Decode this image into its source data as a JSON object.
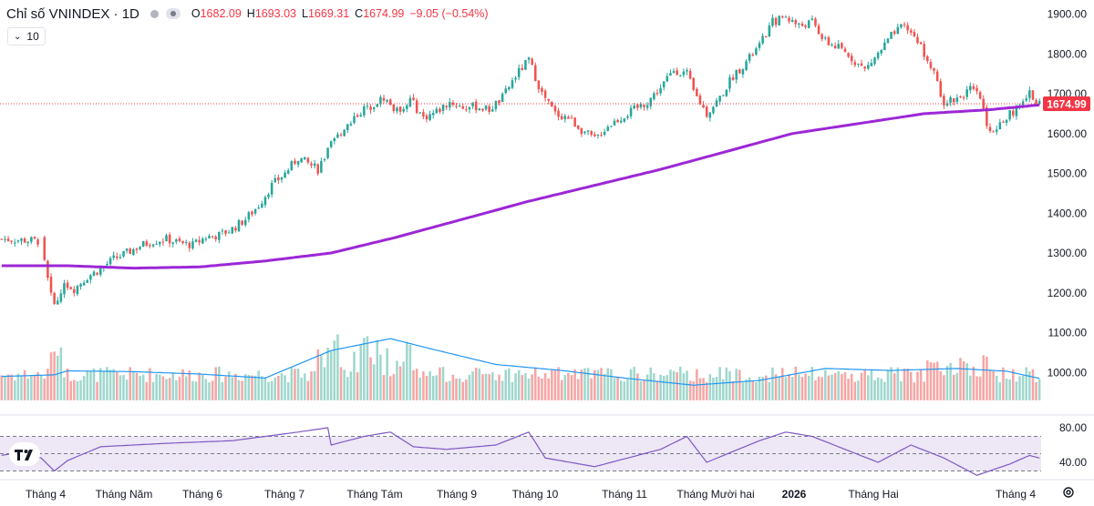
{
  "header": {
    "symbol_title": "Chỉ số VNINDEX · 1D",
    "ohlc": {
      "o_label": "O",
      "o_value": "1682.09",
      "h_label": "H",
      "h_value": "1693.03",
      "l_label": "L",
      "l_value": "1669.31",
      "c_label": "C",
      "c_value": "1674.99",
      "change": "−9.05 (−0.54%)"
    },
    "indicator_length": "10"
  },
  "colors": {
    "up": "#26a69a",
    "down": "#ef5350",
    "up_volume": "#9fd7cd",
    "down_volume": "#f5a6a4",
    "ma_line": "#9c27d6",
    "volume_ma": "#2196f3",
    "rsi_line": "#7e57c2",
    "rsi_band": "#ede7f6",
    "price_label_bg": "#f23645"
  },
  "chart_data": {
    "type": "candlestick",
    "series_daily": "VNINDEX 1D",
    "price_axis": {
      "ticks": [
        "1900.00",
        "1800.00",
        "1700.00",
        "1600.00",
        "1500.00",
        "1400.00",
        "1300.00",
        "1200.00",
        "1100.00",
        "1000.00"
      ],
      "range": [
        930,
        1930
      ]
    },
    "last_price": "1674.99",
    "rsi_axis": {
      "ticks": [
        "80.00",
        "40.00"
      ],
      "upper_band": 70,
      "lower_band": 30,
      "mid": 50
    },
    "time_axis": [
      "Tháng 4",
      "Tháng Năm",
      "Tháng 6",
      "Tháng 7",
      "Tháng Tám",
      "Tháng 9",
      "Tháng 10",
      "Tháng 11",
      "Tháng Mười hai",
      "2026",
      "Tháng Hai",
      "Tháng 4"
    ],
    "price_path": [
      [
        0,
        1335
      ],
      [
        12,
        1330
      ],
      [
        13,
        1275
      ],
      [
        15,
        1190
      ],
      [
        17,
        1175
      ],
      [
        19,
        1225
      ],
      [
        22,
        1210
      ],
      [
        26,
        1240
      ],
      [
        30,
        1260
      ],
      [
        34,
        1285
      ],
      [
        38,
        1300
      ],
      [
        42,
        1318
      ],
      [
        46,
        1330
      ],
      [
        50,
        1335
      ],
      [
        54,
        1325
      ],
      [
        58,
        1320
      ],
      [
        62,
        1340
      ],
      [
        66,
        1345
      ],
      [
        70,
        1360
      ],
      [
        74,
        1385
      ],
      [
        78,
        1420
      ],
      [
        82,
        1470
      ],
      [
        86,
        1500
      ],
      [
        90,
        1540
      ],
      [
        94,
        1520
      ],
      [
        96,
        1510
      ],
      [
        100,
        1570
      ],
      [
        104,
        1615
      ],
      [
        108,
        1650
      ],
      [
        112,
        1670
      ],
      [
        116,
        1690
      ],
      [
        120,
        1655
      ],
      [
        124,
        1685
      ],
      [
        128,
        1640
      ],
      [
        132,
        1655
      ],
      [
        136,
        1680
      ],
      [
        140,
        1665
      ],
      [
        144,
        1668
      ],
      [
        148,
        1660
      ],
      [
        152,
        1690
      ],
      [
        156,
        1745
      ],
      [
        160,
        1785
      ],
      [
        164,
        1700
      ],
      [
        168,
        1650
      ],
      [
        172,
        1640
      ],
      [
        176,
        1610
      ],
      [
        180,
        1585
      ],
      [
        184,
        1620
      ],
      [
        188,
        1640
      ],
      [
        192,
        1660
      ],
      [
        196,
        1680
      ],
      [
        200,
        1715
      ],
      [
        204,
        1760
      ],
      [
        208,
        1750
      ],
      [
        210,
        1705
      ],
      [
        214,
        1650
      ],
      [
        218,
        1690
      ],
      [
        222,
        1745
      ],
      [
        226,
        1780
      ],
      [
        230,
        1820
      ],
      [
        234,
        1880
      ],
      [
        238,
        1895
      ],
      [
        242,
        1870
      ],
      [
        246,
        1880
      ],
      [
        250,
        1830
      ],
      [
        254,
        1815
      ],
      [
        258,
        1790
      ],
      [
        262,
        1760
      ],
      [
        266,
        1800
      ],
      [
        270,
        1845
      ],
      [
        274,
        1870
      ],
      [
        278,
        1835
      ],
      [
        282,
        1770
      ],
      [
        286,
        1680
      ],
      [
        290,
        1690
      ],
      [
        294,
        1710
      ],
      [
        297,
        1690
      ],
      [
        300,
        1600
      ],
      [
        303,
        1625
      ],
      [
        306,
        1650
      ],
      [
        309,
        1665
      ],
      [
        312,
        1700
      ],
      [
        315,
        1675
      ]
    ],
    "ma_line": [
      [
        0,
        1268
      ],
      [
        20,
        1268
      ],
      [
        40,
        1262
      ],
      [
        60,
        1265
      ],
      [
        80,
        1280
      ],
      [
        100,
        1300
      ],
      [
        120,
        1340
      ],
      [
        140,
        1385
      ],
      [
        160,
        1430
      ],
      [
        180,
        1470
      ],
      [
        200,
        1510
      ],
      [
        220,
        1555
      ],
      [
        240,
        1600
      ],
      [
        260,
        1625
      ],
      [
        280,
        1650
      ],
      [
        300,
        1660
      ],
      [
        315,
        1672
      ]
    ],
    "volume_ma": [
      [
        0,
        990
      ],
      [
        16,
        994
      ],
      [
        20,
        1004
      ],
      [
        40,
        1002
      ],
      [
        60,
        996
      ],
      [
        80,
        986
      ],
      [
        100,
        1055
      ],
      [
        118,
        1085
      ],
      [
        130,
        1060
      ],
      [
        150,
        1020
      ],
      [
        170,
        1005
      ],
      [
        190,
        985
      ],
      [
        210,
        968
      ],
      [
        230,
        980
      ],
      [
        250,
        1010
      ],
      [
        270,
        1005
      ],
      [
        290,
        1010
      ],
      [
        305,
        1003
      ],
      [
        315,
        985
      ]
    ],
    "rsi": [
      [
        0,
        48
      ],
      [
        6,
        52
      ],
      [
        12,
        45
      ],
      [
        16,
        30
      ],
      [
        20,
        42
      ],
      [
        30,
        58
      ],
      [
        50,
        62
      ],
      [
        70,
        65
      ],
      [
        90,
        75
      ],
      [
        99,
        80
      ],
      [
        100,
        60
      ],
      [
        110,
        70
      ],
      [
        118,
        75
      ],
      [
        125,
        58
      ],
      [
        135,
        55
      ],
      [
        150,
        60
      ],
      [
        160,
        75
      ],
      [
        165,
        45
      ],
      [
        180,
        35
      ],
      [
        200,
        55
      ],
      [
        208,
        70
      ],
      [
        214,
        40
      ],
      [
        230,
        65
      ],
      [
        238,
        75
      ],
      [
        246,
        70
      ],
      [
        256,
        55
      ],
      [
        266,
        40
      ],
      [
        276,
        60
      ],
      [
        286,
        45
      ],
      [
        296,
        25
      ],
      [
        306,
        38
      ],
      [
        312,
        48
      ],
      [
        315,
        45
      ]
    ]
  }
}
